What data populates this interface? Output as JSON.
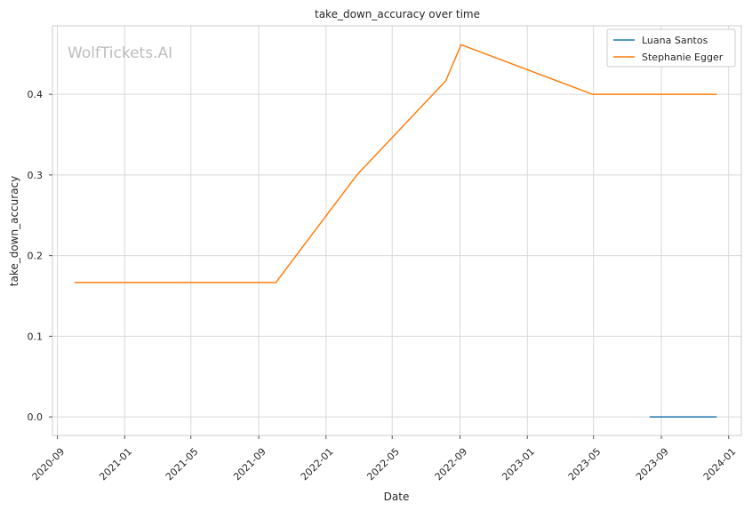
{
  "chart_data": {
    "type": "line",
    "title": "take_down_accuracy over time",
    "xlabel": "Date",
    "ylabel": "take_down_accuracy",
    "watermark": "WolfTickets.AI",
    "x_ticks": [
      "2020-09",
      "2021-01",
      "2021-05",
      "2021-09",
      "2022-01",
      "2022-05",
      "2022-09",
      "2023-01",
      "2023-05",
      "2023-09",
      "2024-01"
    ],
    "y_ticks": [
      "0.0",
      "0.1",
      "0.2",
      "0.3",
      "0.4"
    ],
    "xlim": [
      "2020-08-23",
      "2024-01-24"
    ],
    "ylim": [
      -0.023,
      0.485
    ],
    "grid": true,
    "legend_position": "top-right",
    "series": [
      {
        "name": "Luana Santos",
        "color": "#1f77b4",
        "points": [
          {
            "x": "2023-08-12",
            "y": 0.0
          },
          {
            "x": "2023-12-09",
            "y": 0.0
          }
        ]
      },
      {
        "name": "Stephanie Egger",
        "color": "#ff7f0e",
        "points": [
          {
            "x": "2020-10-03",
            "y": 0.1667
          },
          {
            "x": "2021-10-02",
            "y": 0.1667
          },
          {
            "x": "2022-02-26",
            "y": 0.3
          },
          {
            "x": "2022-08-06",
            "y": 0.4167
          },
          {
            "x": "2022-09-03",
            "y": 0.4615
          },
          {
            "x": "2023-04-29",
            "y": 0.4
          },
          {
            "x": "2023-12-09",
            "y": 0.4
          }
        ]
      }
    ]
  }
}
